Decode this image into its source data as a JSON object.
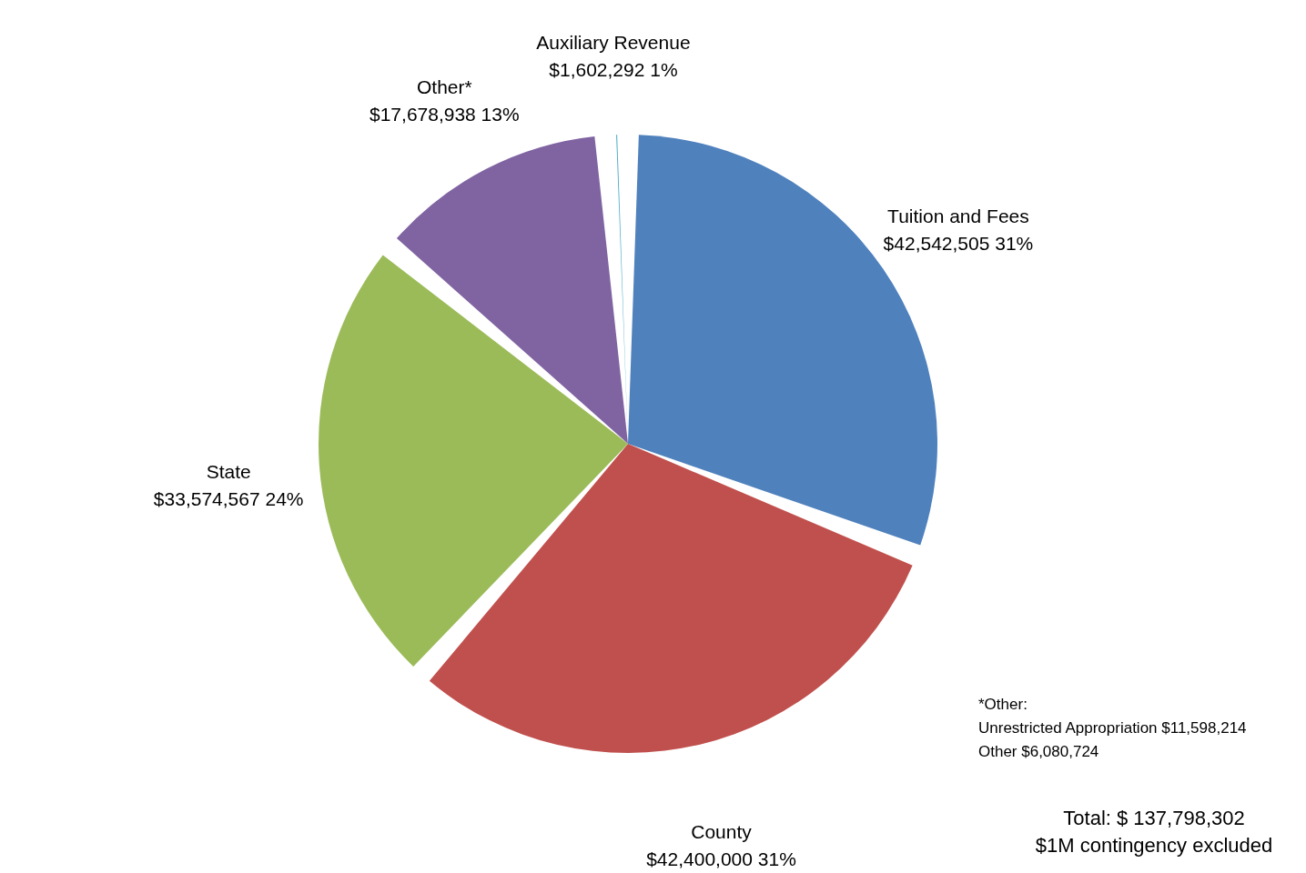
{
  "chart_data": {
    "type": "pie",
    "categories": [
      "Tuition and Fees",
      "County",
      "State",
      "Other*",
      "Auxiliary Revenue"
    ],
    "values": [
      42542505,
      42400000,
      33574567,
      17678938,
      1602292
    ],
    "colors": [
      "#4f81bd",
      "#c0504d",
      "#9bbb59",
      "#8064a2",
      "#4bacc6"
    ],
    "value_labels": [
      "$42,542,505  31%",
      "$42,400,000  31%",
      "$33,574,567  24%",
      "$17,678,938  13%",
      "$1,602,292  1%"
    ],
    "annotations": [
      "*Other:",
      "Unrestricted Appropriation $11,598,214",
      "Other $6,080,724",
      "Total:  $    137,798,302",
      "$1M contingency excluded"
    ]
  }
}
